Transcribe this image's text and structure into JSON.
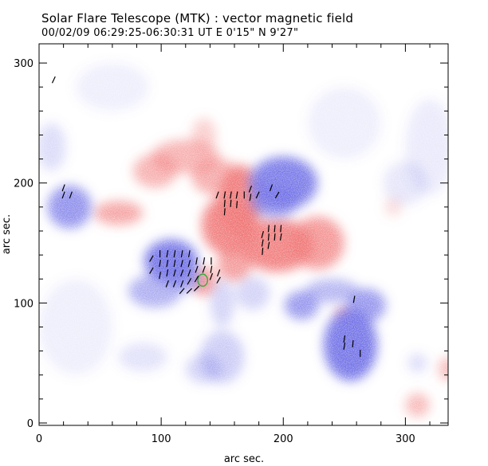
{
  "header": {
    "title": "Solar Flare Telescope (MTK) : vector magnetic field",
    "subtitle": "00/02/09   06:29:25-06:30:31 UT    E 0'15\"   N 9'27\""
  },
  "axes": {
    "x_label": "arc sec.",
    "y_label": "arc sec.",
    "x_range": [
      0,
      335
    ],
    "y_range": [
      -2,
      316
    ],
    "x_ticks": [
      "0",
      "100",
      "200",
      "300"
    ],
    "x_tick_values": [
      0,
      100,
      200,
      300
    ],
    "y_ticks": [
      "0",
      "100",
      "200",
      "300"
    ],
    "y_tick_values": [
      0,
      100,
      200,
      300
    ]
  },
  "colors": {
    "positive_polarity": "#f07070",
    "negative_polarity": "#6a6ae6",
    "vector": "#000000",
    "contour": "#33aa33"
  },
  "magnetogram": {
    "positive_regions": [
      {
        "x": 165,
        "y": 185,
        "rx": 18,
        "ry": 30,
        "o": 0.9
      },
      {
        "x": 155,
        "y": 165,
        "rx": 22,
        "ry": 25,
        "o": 0.9
      },
      {
        "x": 145,
        "y": 205,
        "rx": 20,
        "ry": 15,
        "o": 0.6
      },
      {
        "x": 120,
        "y": 222,
        "rx": 28,
        "ry": 14,
        "o": 0.55
      },
      {
        "x": 135,
        "y": 240,
        "rx": 10,
        "ry": 14,
        "o": 0.35
      },
      {
        "x": 95,
        "y": 210,
        "rx": 18,
        "ry": 14,
        "o": 0.55
      },
      {
        "x": 65,
        "y": 175,
        "rx": 20,
        "ry": 10,
        "o": 0.65
      },
      {
        "x": 195,
        "y": 148,
        "rx": 30,
        "ry": 22,
        "o": 0.9
      },
      {
        "x": 228,
        "y": 150,
        "rx": 22,
        "ry": 22,
        "o": 0.75
      },
      {
        "x": 160,
        "y": 132,
        "rx": 14,
        "ry": 14,
        "o": 0.7
      },
      {
        "x": 135,
        "y": 118,
        "rx": 10,
        "ry": 12,
        "o": 0.75
      },
      {
        "x": 250,
        "y": 90,
        "rx": 7,
        "ry": 6,
        "o": 0.7
      },
      {
        "x": 310,
        "y": 15,
        "rx": 10,
        "ry": 10,
        "o": 0.5
      },
      {
        "x": 335,
        "y": 45,
        "rx": 8,
        "ry": 10,
        "o": 0.5
      },
      {
        "x": 290,
        "y": 180,
        "rx": 7,
        "ry": 8,
        "o": 0.25
      }
    ],
    "negative_regions": [
      {
        "x": 200,
        "y": 200,
        "rx": 28,
        "ry": 22,
        "o": 0.9
      },
      {
        "x": 193,
        "y": 185,
        "rx": 20,
        "ry": 14,
        "o": 0.7
      },
      {
        "x": 108,
        "y": 135,
        "rx": 22,
        "ry": 18,
        "o": 0.95
      },
      {
        "x": 95,
        "y": 110,
        "rx": 22,
        "ry": 14,
        "o": 0.55
      },
      {
        "x": 120,
        "y": 120,
        "rx": 12,
        "ry": 10,
        "o": 0.7
      },
      {
        "x": 25,
        "y": 180,
        "rx": 18,
        "ry": 18,
        "o": 0.75
      },
      {
        "x": 215,
        "y": 98,
        "rx": 14,
        "ry": 12,
        "o": 0.7
      },
      {
        "x": 175,
        "y": 108,
        "rx": 14,
        "ry": 14,
        "o": 0.3
      },
      {
        "x": 255,
        "y": 65,
        "rx": 22,
        "ry": 30,
        "o": 0.95
      },
      {
        "x": 268,
        "y": 98,
        "rx": 16,
        "ry": 14,
        "o": 0.7
      },
      {
        "x": 240,
        "y": 110,
        "rx": 22,
        "ry": 10,
        "o": 0.5
      },
      {
        "x": 150,
        "y": 100,
        "rx": 10,
        "ry": 20,
        "o": 0.3
      },
      {
        "x": 150,
        "y": 55,
        "rx": 18,
        "ry": 22,
        "o": 0.35
      },
      {
        "x": 135,
        "y": 45,
        "rx": 15,
        "ry": 12,
        "o": 0.3
      },
      {
        "x": 85,
        "y": 55,
        "rx": 20,
        "ry": 12,
        "o": 0.2
      },
      {
        "x": 310,
        "y": 50,
        "rx": 8,
        "ry": 8,
        "o": 0.25
      },
      {
        "x": 10,
        "y": 230,
        "rx": 12,
        "ry": 20,
        "o": 0.25
      },
      {
        "x": 300,
        "y": 200,
        "rx": 18,
        "ry": 18,
        "o": 0.18
      },
      {
        "x": 250,
        "y": 250,
        "rx": 30,
        "ry": 30,
        "o": 0.12
      },
      {
        "x": 60,
        "y": 280,
        "rx": 30,
        "ry": 20,
        "o": 0.12
      },
      {
        "x": 30,
        "y": 80,
        "rx": 30,
        "ry": 40,
        "o": 0.12
      },
      {
        "x": 320,
        "y": 230,
        "rx": 20,
        "ry": 40,
        "o": 0.15
      }
    ]
  },
  "vectors": [
    {
      "x": 12,
      "y": 286,
      "a": -65
    },
    {
      "x": 20,
      "y": 196,
      "a": -70
    },
    {
      "x": 20,
      "y": 190,
      "a": -70
    },
    {
      "x": 26,
      "y": 190,
      "a": -70
    },
    {
      "x": 92,
      "y": 137,
      "a": -60
    },
    {
      "x": 92,
      "y": 127,
      "a": -60
    },
    {
      "x": 99,
      "y": 141,
      "a": -90
    },
    {
      "x": 99,
      "y": 133,
      "a": -80
    },
    {
      "x": 99,
      "y": 123,
      "a": -80
    },
    {
      "x": 105,
      "y": 141,
      "a": -80
    },
    {
      "x": 105,
      "y": 133,
      "a": -80
    },
    {
      "x": 105,
      "y": 125,
      "a": -80
    },
    {
      "x": 105,
      "y": 116,
      "a": -70
    },
    {
      "x": 111,
      "y": 141,
      "a": -80
    },
    {
      "x": 111,
      "y": 133,
      "a": -80
    },
    {
      "x": 111,
      "y": 125,
      "a": -75
    },
    {
      "x": 111,
      "y": 116,
      "a": -70
    },
    {
      "x": 117,
      "y": 141,
      "a": -80
    },
    {
      "x": 117,
      "y": 133,
      "a": -75
    },
    {
      "x": 117,
      "y": 125,
      "a": -70
    },
    {
      "x": 117,
      "y": 116,
      "a": -70
    },
    {
      "x": 117,
      "y": 110,
      "a": -50
    },
    {
      "x": 123,
      "y": 141,
      "a": -80
    },
    {
      "x": 123,
      "y": 133,
      "a": -75
    },
    {
      "x": 123,
      "y": 125,
      "a": -70
    },
    {
      "x": 123,
      "y": 118,
      "a": -60
    },
    {
      "x": 123,
      "y": 110,
      "a": -45
    },
    {
      "x": 129,
      "y": 135,
      "a": -80
    },
    {
      "x": 129,
      "y": 128,
      "a": -70
    },
    {
      "x": 129,
      "y": 120,
      "a": -60
    },
    {
      "x": 129,
      "y": 112,
      "a": -45
    },
    {
      "x": 135,
      "y": 135,
      "a": -80
    },
    {
      "x": 135,
      "y": 128,
      "a": -70
    },
    {
      "x": 141,
      "y": 135,
      "a": -90
    },
    {
      "x": 141,
      "y": 128,
      "a": -80
    },
    {
      "x": 141,
      "y": 122,
      "a": -70
    },
    {
      "x": 147,
      "y": 125,
      "a": -70
    },
    {
      "x": 147,
      "y": 119,
      "a": -60
    },
    {
      "x": 146,
      "y": 190,
      "a": -70
    },
    {
      "x": 152,
      "y": 190,
      "a": -80
    },
    {
      "x": 152,
      "y": 183,
      "a": -85
    },
    {
      "x": 152,
      "y": 176,
      "a": -85
    },
    {
      "x": 157,
      "y": 190,
      "a": -80
    },
    {
      "x": 157,
      "y": 183,
      "a": -85
    },
    {
      "x": 162,
      "y": 190,
      "a": -80
    },
    {
      "x": 162,
      "y": 182,
      "a": -85
    },
    {
      "x": 168,
      "y": 190,
      "a": -90
    },
    {
      "x": 173,
      "y": 195,
      "a": -70
    },
    {
      "x": 173,
      "y": 188,
      "a": -80
    },
    {
      "x": 179,
      "y": 190,
      "a": -65
    },
    {
      "x": 190,
      "y": 196,
      "a": -70
    },
    {
      "x": 195,
      "y": 190,
      "a": -60
    },
    {
      "x": 183,
      "y": 157,
      "a": -75
    },
    {
      "x": 183,
      "y": 150,
      "a": -80
    },
    {
      "x": 183,
      "y": 143,
      "a": -85
    },
    {
      "x": 188,
      "y": 162,
      "a": -85
    },
    {
      "x": 188,
      "y": 155,
      "a": -85
    },
    {
      "x": 188,
      "y": 148,
      "a": -80
    },
    {
      "x": 193,
      "y": 162,
      "a": -85
    },
    {
      "x": 193,
      "y": 155,
      "a": -85
    },
    {
      "x": 198,
      "y": 162,
      "a": -85
    },
    {
      "x": 198,
      "y": 155,
      "a": -80
    },
    {
      "x": 258,
      "y": 103,
      "a": -80
    },
    {
      "x": 250,
      "y": 70,
      "a": -80
    },
    {
      "x": 250,
      "y": 64,
      "a": -80
    },
    {
      "x": 257,
      "y": 66,
      "a": -85
    },
    {
      "x": 263,
      "y": 58,
      "a": -90
    }
  ],
  "contour": {
    "x": 134,
    "y": 119,
    "rx": 4,
    "ry": 5
  }
}
